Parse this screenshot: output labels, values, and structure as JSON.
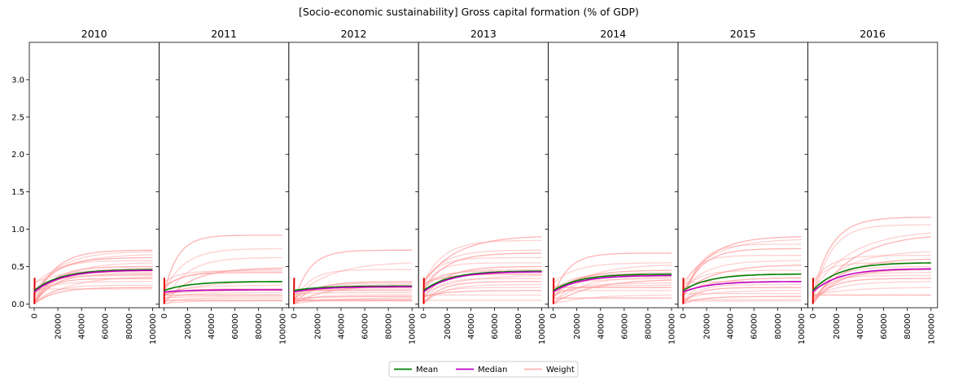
{
  "chart_data": {
    "type": "line",
    "title": "[Socio-economic sustainability] Gross capital formation (% of GDP)",
    "panels": [
      "2010",
      "2011",
      "2012",
      "2013",
      "2014",
      "2015",
      "2016"
    ],
    "xlim": [
      0,
      100000
    ],
    "ylim": [
      -0.05,
      3.5
    ],
    "x_ticks": [
      "0",
      "20000",
      "40000",
      "60000",
      "80000",
      "100000"
    ],
    "y_ticks": [
      "0.0",
      "0.5",
      "1.0",
      "1.5",
      "2.0",
      "2.5",
      "3.0"
    ],
    "legend": {
      "placement": "bottom-center",
      "entries": [
        {
          "label": "Mean",
          "color": "#008000"
        },
        {
          "label": "Median",
          "color": "#c000c0"
        },
        {
          "label": "Weight",
          "color": "#ffb3b3"
        }
      ]
    },
    "series_per_panel": [
      {
        "year": "2010",
        "mean_final": 0.46,
        "median_final": 0.45,
        "weight_finals": [
          0.72,
          0.7,
          0.66,
          0.62,
          0.58,
          0.55,
          0.5,
          0.48,
          0.46,
          0.45,
          0.44,
          0.42,
          0.4,
          0.38,
          0.36,
          0.34,
          0.3,
          0.25,
          0.22,
          0.2
        ]
      },
      {
        "year": "2011",
        "mean_final": 0.3,
        "median_final": 0.19,
        "weight_finals": [
          0.92,
          0.74,
          0.62,
          0.48,
          0.46,
          0.44,
          0.42,
          0.3,
          0.25,
          0.2,
          0.18,
          0.15,
          0.12,
          0.1,
          0.08,
          0.05,
          0.04
        ]
      },
      {
        "year": "2012",
        "mean_final": 0.24,
        "median_final": 0.23,
        "weight_finals": [
          0.72,
          0.55,
          0.46,
          0.3,
          0.28,
          0.26,
          0.24,
          0.22,
          0.2,
          0.18,
          0.15,
          0.12,
          0.1,
          0.08,
          0.06,
          0.05,
          0.04
        ]
      },
      {
        "year": "2013",
        "mean_final": 0.44,
        "median_final": 0.43,
        "weight_finals": [
          0.9,
          0.85,
          0.72,
          0.68,
          0.62,
          0.55,
          0.5,
          0.46,
          0.44,
          0.4,
          0.38,
          0.34,
          0.3,
          0.26,
          0.22,
          0.18,
          0.12,
          0.05
        ]
      },
      {
        "year": "2014",
        "mean_final": 0.4,
        "median_final": 0.38,
        "weight_finals": [
          0.68,
          0.55,
          0.52,
          0.45,
          0.42,
          0.4,
          0.38,
          0.36,
          0.34,
          0.32,
          0.28,
          0.25,
          0.22,
          0.18,
          0.12,
          0.08
        ]
      },
      {
        "year": "2015",
        "mean_final": 0.4,
        "median_final": 0.3,
        "weight_finals": [
          0.9,
          0.86,
          0.8,
          0.74,
          0.65,
          0.58,
          0.52,
          0.45,
          0.4,
          0.35,
          0.3,
          0.26,
          0.22,
          0.18,
          0.14,
          0.1,
          0.06,
          0.04
        ]
      },
      {
        "year": "2016",
        "mean_final": 0.55,
        "median_final": 0.47,
        "weight_finals": [
          1.16,
          1.06,
          0.95,
          0.9,
          0.7,
          0.65,
          0.6,
          0.55,
          0.5,
          0.46,
          0.42,
          0.38,
          0.34,
          0.3,
          0.22,
          0.12
        ]
      }
    ]
  }
}
